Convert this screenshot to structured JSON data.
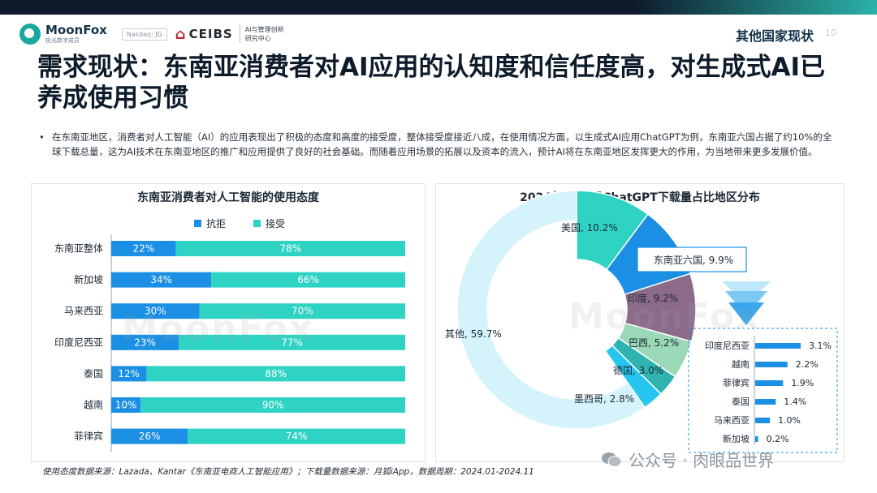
{
  "header": {
    "logo_name": "MoonFox",
    "logo_sub": "极光数字成员",
    "nasdaq": "Nasdaq: JG",
    "ceibs": "CEIBS",
    "ceibs_sub_line1": "AI与管理创新",
    "ceibs_sub_line2": "研究中心",
    "section_title": "其他国家现状",
    "page_number": "10"
  },
  "headline": "需求现状：东南亚消费者对AI应用的认知度和信任度高，对生成式AI已养成使用习惯",
  "bullet_text": "在东南亚地区，消费者对人工智能（AI）的应用表现出了积极的态度和高度的接受度，整体接受度接近八成，在使用情况方面，以生成式AI应用ChatGPT为例，东南亚六国占据了约10%的全球下载总量，这为AI技术在东南亚地区的推广和应用提供了良好的社会基础。而随着应用场景的拓展以及资本的流入，预计AI将在东南亚地区发挥更大的作用，为当地带来更多发展价值。",
  "watermark": "MoonFox",
  "footnote": "使用态度数据来源：Lazada、Kantar《东南亚电商人工智能应用》；下载量数据来源：月狐iApp，数据周期：2024.01-2024.11",
  "wechat": "公众号 · 肉眼品世界",
  "colors": {
    "reject": "#1a8fe3",
    "accept": "#2fd3c4",
    "pie_us": "#2fd3c4",
    "pie_sea": "#1a8fe3",
    "pie_india": "#8c6b88",
    "pie_brazil": "#9ad8b8",
    "pie_germany": "#2fb3b0",
    "pie_mexico": "#27c6f0",
    "pie_other": "#d4f3fb",
    "sub_bar": "#1a8fe3"
  },
  "chart_data": [
    {
      "type": "bar",
      "orientation": "horizontal",
      "stacked": true,
      "title": "东南亚消费者对人工智能的使用态度",
      "legend_position": "top",
      "categories": [
        "东南亚整体",
        "新加坡",
        "马来西亚",
        "印度尼西亚",
        "泰国",
        "越南",
        "菲律宾"
      ],
      "series": [
        {
          "name": "抗拒",
          "values": [
            22,
            34,
            30,
            23,
            12,
            10,
            26
          ],
          "labels": [
            "22%",
            "34%",
            "30%",
            "23%",
            "12%",
            "10%",
            "26%"
          ]
        },
        {
          "name": "接受",
          "values": [
            78,
            66,
            70,
            77,
            88,
            90,
            74
          ],
          "labels": [
            "78%",
            "66%",
            "70%",
            "77%",
            "88%",
            "90%",
            "74%"
          ]
        }
      ],
      "xlim": [
        0,
        100
      ]
    },
    {
      "type": "pie",
      "donut": true,
      "title": "2024年1-11月ChatGPT下载量占比地区分布",
      "slices": [
        {
          "label": "美国, 10.2%",
          "value": 10.2
        },
        {
          "label": "东南亚六国, 9.9%",
          "value": 9.9
        },
        {
          "label": "印度, 9.2%",
          "value": 9.2
        },
        {
          "label": "巴西, 5.2%",
          "value": 5.2
        },
        {
          "label": "德国, 3.0%",
          "value": 3.0
        },
        {
          "label": "墨西哥, 2.8%",
          "value": 2.8
        },
        {
          "label": "其他, 59.7%",
          "value": 59.7
        }
      ]
    },
    {
      "type": "bar",
      "orientation": "horizontal",
      "categories": [
        "印度尼西亚",
        "越南",
        "菲律宾",
        "泰国",
        "马来西亚",
        "新加坡"
      ],
      "values": [
        3.1,
        2.2,
        1.9,
        1.4,
        1.0,
        0.2
      ],
      "labels": [
        "3.1%",
        "2.2%",
        "1.9%",
        "1.4%",
        "1.0%",
        "0.2%"
      ]
    }
  ]
}
